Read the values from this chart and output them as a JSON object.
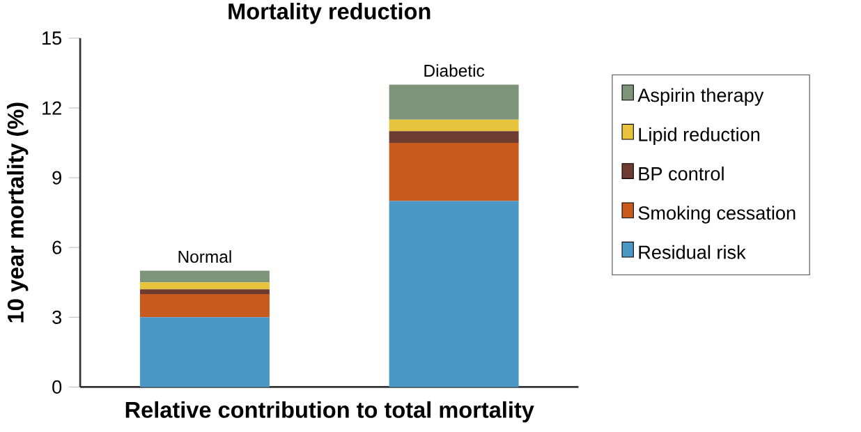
{
  "chart_data": {
    "type": "bar",
    "stacked": true,
    "title": "Mortality reduction",
    "xlabel": "Relative contribution to total mortality",
    "ylabel": "10 year mortality (%)",
    "categories": [
      "Normal",
      "Diabetic"
    ],
    "series": [
      {
        "name": "Residual risk",
        "color": "#4a98c6",
        "values": [
          3,
          8
        ]
      },
      {
        "name": "Smoking cessation",
        "color": "#c85a1e",
        "values": [
          1,
          2.5
        ]
      },
      {
        "name": "BP control",
        "color": "#6e3b30",
        "values": [
          0.2,
          0.5
        ]
      },
      {
        "name": "Lipid reduction",
        "color": "#e8c43c",
        "values": [
          0.3,
          0.5
        ]
      },
      {
        "name": "Aspirin therapy",
        "color": "#7f957a",
        "values": [
          0.5,
          1.5
        ]
      }
    ],
    "ylim": [
      0,
      15
    ],
    "yticks": [
      0,
      3,
      6,
      9,
      12,
      15
    ],
    "legend": "right",
    "grid": false
  }
}
